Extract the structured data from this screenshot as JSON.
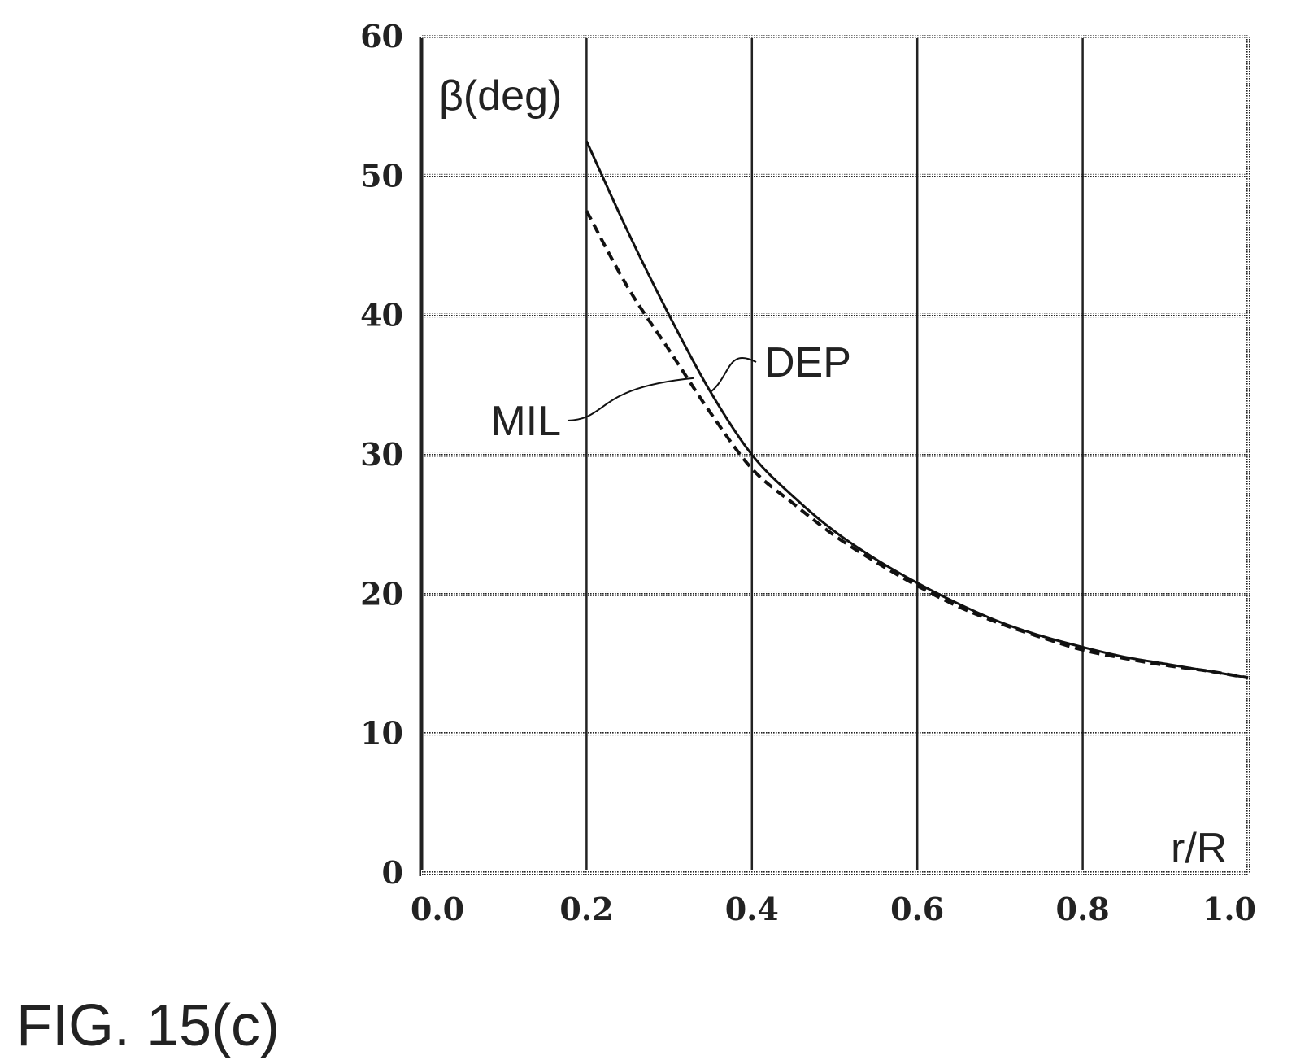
{
  "figure_label": "FIG. 15(c)",
  "colors": {
    "line": "#111111",
    "grid": "#222222",
    "background": "#ffffff"
  },
  "chart_data": {
    "type": "line",
    "xlabel": "r/R",
    "ylabel": "β(deg)",
    "xlim": [
      0.0,
      1.0
    ],
    "ylim": [
      0,
      60
    ],
    "x_ticks": [
      "0.0",
      "0.2",
      "0.4",
      "0.6",
      "0.8",
      "1.0"
    ],
    "y_ticks": [
      "0",
      "10",
      "20",
      "30",
      "40",
      "50",
      "60"
    ],
    "grid": true,
    "series": [
      {
        "name": "DEP",
        "style": "solid",
        "x": [
          0.2,
          0.25,
          0.3,
          0.35,
          0.4,
          0.45,
          0.5,
          0.55,
          0.6,
          0.65,
          0.7,
          0.75,
          0.8,
          0.85,
          0.9,
          0.95,
          1.0
        ],
        "y": [
          52.5,
          46.0,
          40.0,
          34.5,
          30.0,
          27.0,
          24.5,
          22.5,
          20.8,
          19.3,
          18.0,
          17.0,
          16.2,
          15.5,
          15.0,
          14.5,
          14.0
        ]
      },
      {
        "name": "MIL",
        "style": "dashed",
        "x": [
          0.2,
          0.25,
          0.3,
          0.35,
          0.4,
          0.45,
          0.5,
          0.55,
          0.6,
          0.65,
          0.7,
          0.75,
          0.8,
          0.85,
          0.9,
          0.95,
          1.0
        ],
        "y": [
          47.5,
          42.0,
          37.5,
          33.0,
          29.0,
          26.5,
          24.2,
          22.3,
          20.6,
          19.1,
          17.9,
          16.9,
          16.0,
          15.4,
          14.9,
          14.5,
          14.0
        ]
      }
    ],
    "annotations": [
      {
        "text": "DEP",
        "target": "DEP",
        "x": 0.35,
        "y": 34.5
      },
      {
        "text": "MIL",
        "target": "MIL",
        "x": 0.33,
        "y": 35.5
      }
    ]
  }
}
